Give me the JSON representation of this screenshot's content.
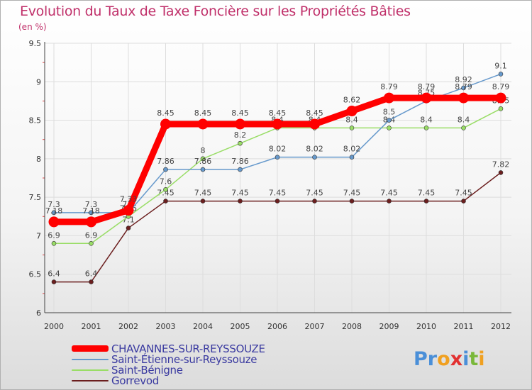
{
  "header": {
    "title": "Evolution du Taux de Taxe Foncière sur les Propriétés Bâties",
    "unit": "(en %)"
  },
  "chart_data": {
    "type": "line",
    "title": "Evolution du Taux de Taxe Foncière sur les Propriétés Bâties",
    "ylabel": "(en %)",
    "xlabel": "",
    "ylim": [
      6,
      9.5
    ],
    "yticks": [
      "6",
      "6.5",
      "7",
      "7.5",
      "8",
      "8.5",
      "9",
      "9.5"
    ],
    "categories": [
      "2000",
      "2001",
      "2002",
      "2003",
      "2004",
      "2005",
      "2006",
      "2007",
      "2008",
      "2009",
      "2010",
      "2011",
      "2012"
    ],
    "series": [
      {
        "name": "Gorrevod",
        "color": "#6b1e1e",
        "values": [
          6.4,
          6.4,
          7.1,
          7.45,
          7.45,
          7.45,
          7.45,
          7.45,
          7.45,
          7.45,
          7.45,
          7.45,
          7.82
        ],
        "labels": [
          "6.4",
          "6.4",
          "7.1",
          "7.45",
          "7.45",
          "7.45",
          "7.45",
          "7.45",
          "7.45",
          "7.45",
          "7.45",
          "7.45",
          "7.82"
        ]
      },
      {
        "name": "Saint-Bénigne",
        "color": "#99dd66",
        "values": [
          6.9,
          6.9,
          7.25,
          7.6,
          8.0,
          8.2,
          8.4,
          8.4,
          8.4,
          8.4,
          8.4,
          8.4,
          8.65
        ],
        "labels": [
          "6.9",
          "6.9",
          "7.25",
          "7.6",
          "8",
          "8.2",
          "8.4",
          "8.4",
          "8.4",
          "8.4",
          "8.4",
          "8.4",
          "8.65"
        ]
      },
      {
        "name": "Saint-Étienne-sur-Reyssouze",
        "color": "#6699cc",
        "values": [
          7.3,
          7.3,
          7.3,
          7.86,
          7.86,
          7.86,
          8.02,
          8.02,
          8.02,
          8.5,
          8.75,
          8.92,
          9.1
        ],
        "labels": [
          "7.3",
          "7.3",
          "7.3",
          "7.86",
          "7.86",
          "7.86",
          "8.02",
          "8.02",
          "8.02",
          "8.5",
          "8.75",
          "8.92",
          "9.1"
        ]
      },
      {
        "name": "CHAVANNES-SUR-REYSSOUZE",
        "color": "#ff0000",
        "values": [
          7.18,
          7.18,
          7.33,
          8.45,
          8.45,
          8.45,
          8.45,
          8.45,
          8.62,
          8.79,
          8.79,
          8.79,
          8.79
        ],
        "labels": [
          "7.18",
          "7.18",
          "7.33",
          "8.45",
          "8.45",
          "8.45",
          "8.45",
          "8.45",
          "8.62",
          "8.79",
          "8.79",
          "8.79",
          "8.79"
        ]
      }
    ]
  },
  "legend": [
    {
      "label": "CHAVANNES-SUR-REYSSOUZE",
      "color": "#ff0000"
    },
    {
      "label": "Saint-Étienne-sur-Reyssouze",
      "color": "#6699cc"
    },
    {
      "label": "Saint-Bénigne",
      "color": "#99dd66"
    },
    {
      "label": "Gorrevod",
      "color": "#6b1e1e"
    }
  ],
  "logo": {
    "text": "Proxiti",
    "letters": [
      "P",
      "r",
      "o",
      "x",
      "i",
      "t",
      "i"
    ],
    "colors": [
      "#4a8fd8",
      "#4a8fd8",
      "#f0a020",
      "#e23030",
      "#4a8fd8",
      "#7ab83a",
      "#f0a020"
    ]
  }
}
